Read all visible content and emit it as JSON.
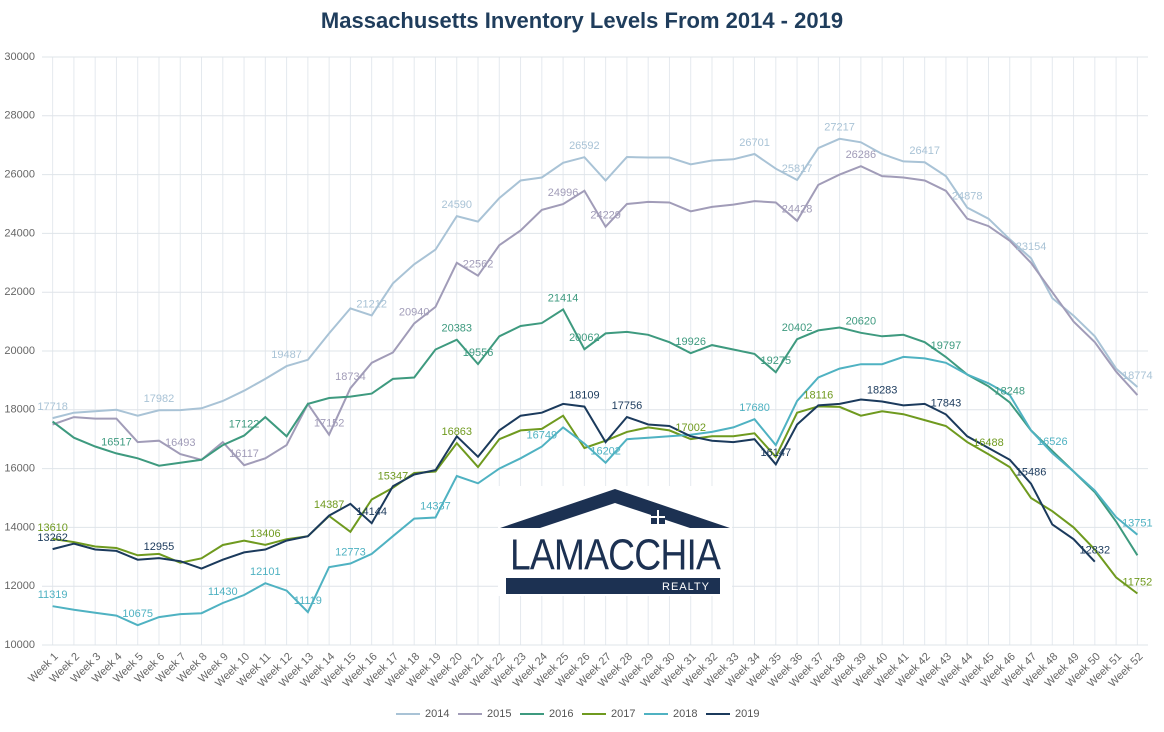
{
  "chart_data": {
    "type": "line",
    "title": "Massachusetts Inventory Levels From 2014 - 2019",
    "logo": {
      "name": "LAMACCHIA",
      "sub": "REALTY"
    },
    "categories": [
      "Week 1",
      "Week 2",
      "Week 3",
      "Week 4",
      "Week 5",
      "Week 6",
      "Week 7",
      "Week 8",
      "Week 9",
      "Week 10",
      "Week 11",
      "Week 12",
      "Week 13",
      "Week 14",
      "Week 15",
      "Week 16",
      "Week 17",
      "Week 18",
      "Week 19",
      "Week 20",
      "Week 21",
      "Week 22",
      "Week 23",
      "Week 24",
      "Week 25",
      "Week 26",
      "Week 27",
      "Week 28",
      "Week 29",
      "Week 30",
      "Week 31",
      "Week 32",
      "Week 33",
      "Week 34",
      "Week 35",
      "Week 36",
      "Week 37",
      "Week 38",
      "Week 39",
      "Week 40",
      "Week 41",
      "Week 42",
      "Week 43",
      "Week 44",
      "Week 45",
      "Week 46",
      "Week 47",
      "Week 48",
      "Week 49",
      "Week 50",
      "Week 51",
      "Week 52"
    ],
    "ylim": [
      10000,
      30000
    ],
    "yticks": [
      10000,
      12000,
      14000,
      16000,
      18000,
      20000,
      22000,
      24000,
      26000,
      28000,
      30000
    ],
    "grid": true,
    "legend": "bottom",
    "series": [
      {
        "name": "2014",
        "color": "#a9c3d6",
        "values": [
          17718,
          17900,
          17950,
          18000,
          17800,
          17982,
          17990,
          18050,
          18300,
          18650,
          19050,
          19487,
          19700,
          20600,
          21450,
          21212,
          22300,
          22950,
          23450,
          24590,
          24400,
          25200,
          25800,
          25900,
          26400,
          26592,
          25800,
          26600,
          26580,
          26580,
          26350,
          26480,
          26520,
          26701,
          26200,
          25817,
          26900,
          27217,
          27100,
          26700,
          26450,
          26417,
          25950,
          24878,
          24500,
          23800,
          23154,
          21800,
          21200,
          20500,
          19400,
          18774
        ],
        "value_labels": [
          "17718",
          null,
          null,
          null,
          null,
          "17982",
          null,
          null,
          null,
          null,
          null,
          "19487",
          null,
          null,
          null,
          "21212",
          null,
          null,
          null,
          "24590",
          null,
          null,
          null,
          null,
          null,
          "26592",
          null,
          null,
          null,
          null,
          null,
          null,
          null,
          "26701",
          null,
          "25817",
          null,
          "27217",
          null,
          null,
          null,
          "26417",
          null,
          "24878",
          null,
          null,
          "23154",
          null,
          null,
          null,
          null,
          "18774"
        ]
      },
      {
        "name": "2015",
        "color": "#a19cb8",
        "values": [
          17500,
          17750,
          17700,
          17700,
          16900,
          16950,
          16493,
          16300,
          16900,
          16117,
          16350,
          16800,
          18200,
          17152,
          18734,
          19600,
          19950,
          20940,
          21500,
          23000,
          22562,
          23600,
          24100,
          24800,
          24996,
          25450,
          24229,
          25000,
          25070,
          25050,
          24750,
          24900,
          24980,
          25100,
          25050,
          24428,
          25650,
          26000,
          26286,
          25950,
          25900,
          25800,
          25450,
          24500,
          24250,
          23750,
          23000,
          22000,
          21000,
          20300,
          19300,
          18500
        ],
        "value_labels": [
          null,
          null,
          null,
          null,
          null,
          null,
          "16493",
          null,
          null,
          "16117",
          null,
          null,
          null,
          "17152",
          "18734",
          null,
          null,
          "20940",
          null,
          null,
          "22562",
          null,
          null,
          null,
          "24996",
          null,
          "24229",
          null,
          null,
          null,
          null,
          null,
          null,
          null,
          null,
          "24428",
          null,
          null,
          "26286",
          null,
          null,
          null,
          null,
          null,
          null,
          null,
          null,
          null,
          null,
          null,
          null,
          null
        ]
      },
      {
        "name": "2016",
        "color": "#3e9a7f",
        "values": [
          17600,
          17050,
          16750,
          16517,
          16350,
          16100,
          16200,
          16300,
          16800,
          17122,
          17750,
          17100,
          18200,
          18400,
          18450,
          18550,
          19050,
          19100,
          20050,
          20383,
          19556,
          20500,
          20850,
          20950,
          21414,
          20062,
          20600,
          20650,
          20550,
          20300,
          19926,
          20200,
          20050,
          19900,
          19275,
          20402,
          20700,
          20800,
          20620,
          20500,
          20550,
          20300,
          19797,
          19200,
          18800,
          18248,
          17300,
          16600,
          15900,
          15200,
          14200,
          13050
        ],
        "value_labels": [
          null,
          null,
          null,
          "16517",
          null,
          null,
          null,
          null,
          null,
          "17122",
          null,
          null,
          null,
          null,
          null,
          null,
          null,
          null,
          null,
          "20383",
          "19556",
          null,
          null,
          null,
          "21414",
          "20062",
          null,
          null,
          null,
          null,
          "19926",
          null,
          null,
          null,
          "19275",
          "20402",
          null,
          null,
          "20620",
          null,
          null,
          null,
          "19797",
          null,
          null,
          "18248",
          null,
          null,
          null,
          null,
          null,
          null
        ]
      },
      {
        "name": "2017",
        "color": "#6f9a1f",
        "values": [
          13610,
          13500,
          13350,
          13300,
          13050,
          13100,
          12800,
          12950,
          13400,
          13550,
          13406,
          13600,
          13700,
          14387,
          13850,
          14950,
          15347,
          15850,
          15900,
          16863,
          16050,
          17000,
          17300,
          17350,
          17800,
          16700,
          16950,
          17250,
          17400,
          17300,
          17002,
          17100,
          17100,
          17200,
          16400,
          17900,
          18116,
          18100,
          17800,
          17950,
          17850,
          17650,
          17450,
          16900,
          16488,
          16050,
          15000,
          14550,
          14000,
          13250,
          12300,
          11752
        ],
        "value_labels": [
          "13610",
          null,
          null,
          null,
          null,
          null,
          null,
          null,
          null,
          null,
          "13406",
          null,
          null,
          "14387",
          null,
          null,
          "15347",
          null,
          null,
          "16863",
          null,
          null,
          null,
          null,
          null,
          null,
          null,
          null,
          null,
          null,
          "17002",
          null,
          null,
          null,
          null,
          null,
          "18116",
          null,
          null,
          null,
          null,
          null,
          null,
          null,
          "16488",
          null,
          null,
          null,
          null,
          null,
          null,
          "11752"
        ]
      },
      {
        "name": "2018",
        "color": "#4fb2c2",
        "values": [
          11319,
          11200,
          11100,
          11000,
          10675,
          10950,
          11050,
          11080,
          11430,
          11700,
          12101,
          11850,
          11119,
          12650,
          12773,
          13100,
          13700,
          14300,
          14337,
          15750,
          15500,
          16000,
          16350,
          16749,
          17400,
          16850,
          16202,
          17000,
          17050,
          17100,
          17150,
          17250,
          17400,
          17680,
          16800,
          18300,
          19100,
          19400,
          19550,
          19550,
          19800,
          19750,
          19600,
          19200,
          18900,
          18500,
          17300,
          16526,
          15900,
          15250,
          14350,
          13751
        ],
        "value_labels": [
          "11319",
          null,
          null,
          null,
          "10675",
          null,
          null,
          null,
          "11430",
          null,
          "12101",
          null,
          "11119",
          null,
          "12773",
          null,
          null,
          null,
          "14337",
          null,
          null,
          null,
          null,
          "16749",
          null,
          null,
          "16202",
          null,
          null,
          null,
          null,
          null,
          null,
          "17680",
          null,
          null,
          null,
          null,
          null,
          null,
          null,
          null,
          null,
          null,
          null,
          null,
          null,
          "16526",
          null,
          null,
          null,
          "13751"
        ]
      },
      {
        "name": "2019",
        "color": "#1b3a5c",
        "values": [
          13262,
          13450,
          13250,
          13200,
          12900,
          12955,
          12850,
          12600,
          12900,
          13150,
          13250,
          13550,
          13700,
          14400,
          14800,
          14144,
          15400,
          15800,
          15950,
          17100,
          16400,
          17300,
          17800,
          17900,
          18200,
          18109,
          16900,
          17756,
          17500,
          17450,
          17100,
          16950,
          16900,
          17000,
          16147,
          17500,
          18150,
          18200,
          18350,
          18283,
          18150,
          18200,
          17843,
          17100,
          16700,
          16300,
          15486,
          14100,
          13600,
          12832,
          null,
          null
        ],
        "value_labels": [
          "13262",
          null,
          null,
          null,
          null,
          "12955",
          null,
          null,
          null,
          null,
          null,
          null,
          null,
          null,
          null,
          "14144",
          null,
          null,
          null,
          null,
          null,
          null,
          null,
          null,
          null,
          "18109",
          null,
          "17756",
          null,
          null,
          null,
          null,
          null,
          null,
          "16147",
          null,
          null,
          null,
          null,
          "18283",
          null,
          null,
          "17843",
          null,
          null,
          null,
          "15486",
          null,
          null,
          "12832",
          null,
          null
        ]
      }
    ]
  }
}
